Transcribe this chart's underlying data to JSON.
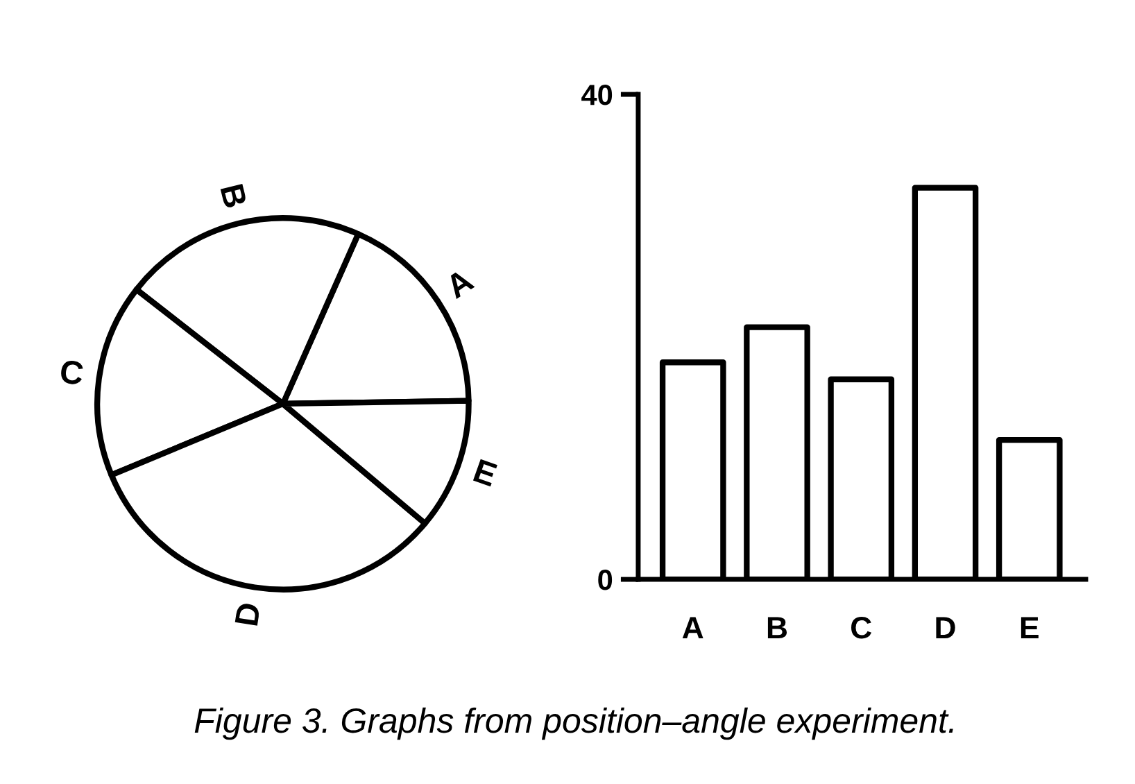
{
  "chart_data": [
    {
      "type": "pie",
      "categories": [
        "A",
        "B",
        "C",
        "D",
        "E"
      ],
      "values": [
        18.1,
        21.1,
        16.8,
        32.6,
        11.4
      ],
      "colors": [
        "#ffffff",
        "#ffffff",
        "#ffffff",
        "#ffffff",
        "#ffffff"
      ],
      "annotations": [
        "Figure 3. Graphs from position–angle experiment."
      ]
    },
    {
      "type": "bar",
      "categories": [
        "A",
        "B",
        "C",
        "D",
        "E"
      ],
      "values": [
        17.9,
        20.8,
        16.5,
        32.3,
        11.5
      ],
      "color": "#ffffff",
      "ylim": [
        0,
        40
      ],
      "yticks": [
        0,
        40
      ]
    }
  ]
}
